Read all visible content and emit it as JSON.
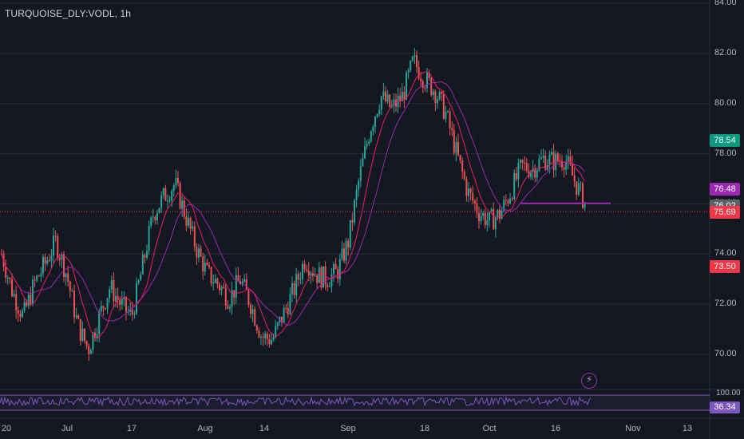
{
  "header": {
    "symbol_label": "TURQUOISE_DLY:VODL, 1h"
  },
  "colors": {
    "bg": "#131722",
    "up": "#26a69a",
    "down": "#ef5350",
    "ma_fast": "#e91e63",
    "ma_slow": "#9c27b0",
    "grid": "#2a2e39",
    "rsi": "#7e57c2"
  },
  "chart_data": {
    "type": "candlestick",
    "ylim": [
      69.0,
      84.0
    ],
    "y_ticks": [
      "84.00",
      "82.00",
      "80.00",
      "78.00",
      "76.00",
      "74.00",
      "72.00",
      "70.00"
    ],
    "x_ticks": [
      "20",
      "Jul",
      "17",
      "Aug",
      "14",
      "Sep",
      "18",
      "Oct",
      "16",
      "Nov",
      "13"
    ],
    "price_path": [
      {
        "d": "20",
        "v": 74.0
      },
      {
        "d": "22",
        "v": 72.5
      },
      {
        "d": "26",
        "v": 71.5
      },
      {
        "d": "27",
        "v": 72.8
      },
      {
        "d": "29",
        "v": 73.6
      },
      {
        "d": "Jul",
        "v": 74.5
      },
      {
        "d": "4",
        "v": 73.2
      },
      {
        "d": "6",
        "v": 71.2
      },
      {
        "d": "10",
        "v": 70.2
      },
      {
        "d": "12",
        "v": 71.5
      },
      {
        "d": "14",
        "v": 72.7
      },
      {
        "d": "15",
        "v": 72.0
      },
      {
        "d": "17",
        "v": 71.5
      },
      {
        "d": "19",
        "v": 73.5
      },
      {
        "d": "21",
        "v": 75.6
      },
      {
        "d": "24",
        "v": 76.3
      },
      {
        "d": "27",
        "v": 76.8
      },
      {
        "d": "28",
        "v": 75.5
      },
      {
        "d": "31",
        "v": 74.2
      },
      {
        "d": "Aug",
        "v": 73.2
      },
      {
        "d": "3",
        "v": 72.8
      },
      {
        "d": "8",
        "v": 72.2
      },
      {
        "d": "9",
        "v": 73.0
      },
      {
        "d": "11",
        "v": 72.0
      },
      {
        "d": "14",
        "v": 70.7
      },
      {
        "d": "18",
        "v": 70.6
      },
      {
        "d": "22",
        "v": 71.6
      },
      {
        "d": "24",
        "v": 72.6
      },
      {
        "d": "28",
        "v": 73.8
      },
      {
        "d": "30",
        "v": 73.2
      },
      {
        "d": "Sep",
        "v": 73.0
      },
      {
        "d": "5",
        "v": 73.3
      },
      {
        "d": "7",
        "v": 74.5
      },
      {
        "d": "9",
        "v": 77.0
      },
      {
        "d": "11",
        "v": 79.0
      },
      {
        "d": "13",
        "v": 80.3
      },
      {
        "d": "15",
        "v": 79.8
      },
      {
        "d": "18",
        "v": 80.3
      },
      {
        "d": "19",
        "v": 81.7
      },
      {
        "d": "20",
        "v": 81.0
      },
      {
        "d": "22",
        "v": 80.5
      },
      {
        "d": "25",
        "v": 79.6
      },
      {
        "d": "27",
        "v": 78.0
      },
      {
        "d": "29",
        "v": 76.5
      },
      {
        "d": "Oct",
        "v": 75.7
      },
      {
        "d": "3",
        "v": 75.3
      },
      {
        "d": "5",
        "v": 75.6
      },
      {
        "d": "7",
        "v": 76.5
      },
      {
        "d": "9",
        "v": 77.5
      },
      {
        "d": "11",
        "v": 77.4
      },
      {
        "d": "13",
        "v": 77.8
      },
      {
        "d": "16",
        "v": 77.7
      },
      {
        "d": "17",
        "v": 77.8
      },
      {
        "d": "19",
        "v": 76.8
      },
      {
        "d": "20",
        "v": 75.9
      }
    ],
    "ma_period_fast": 10,
    "ma_period_slow": 20,
    "price_labels": [
      {
        "value": "78.54",
        "y_value": 78.54,
        "color": "#089981"
      },
      {
        "value": "76.48",
        "y_value": 76.48,
        "color": "#9c27b0"
      },
      {
        "value": "76.02",
        "y_value": 76.02,
        "color": "#5d606b"
      },
      {
        "value": "75.69",
        "y_value": 75.69,
        "color": "#f23645"
      },
      {
        "value": "73.50",
        "y_value": 73.5,
        "color": "#f23645"
      }
    ],
    "horizontal_line": {
      "y_value": 76.02,
      "color": "#9c27b0"
    },
    "current_price_line": {
      "y_value": 75.69,
      "color": "#f23645"
    },
    "rsi": {
      "axis_label": "100.00",
      "value": "36.34"
    }
  }
}
